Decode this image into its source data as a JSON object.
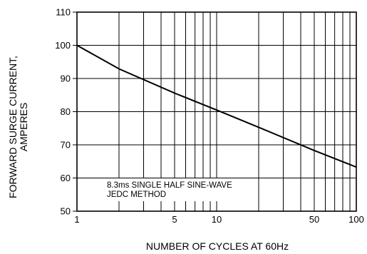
{
  "chart_data": {
    "type": "line",
    "title": "",
    "xlabel": "NUMBER OF CYCLES AT 60Hz",
    "ylabel_lines": [
      "FORWARD SURGE CURRENT,",
      "AMPERES"
    ],
    "x_scale": "log",
    "xlim": [
      1,
      100
    ],
    "ylim": [
      50,
      110
    ],
    "x_tick_labels": [
      "1",
      "5",
      "10",
      "50",
      "100"
    ],
    "y_tick_labels": [
      "50",
      "60",
      "70",
      "80",
      "90",
      "100",
      "110"
    ],
    "grid": true,
    "series": [
      {
        "x": [
          1,
          2,
          5,
          10,
          20,
          50,
          100
        ],
        "y": [
          100,
          92.9,
          85.6,
          80.5,
          75.3,
          68.3,
          63.3
        ]
      }
    ],
    "annotation_lines": [
      "8.3ms SINGLE HALF SINE-WAVE",
      "JEDC METHOD"
    ],
    "line_color": "#000000"
  }
}
